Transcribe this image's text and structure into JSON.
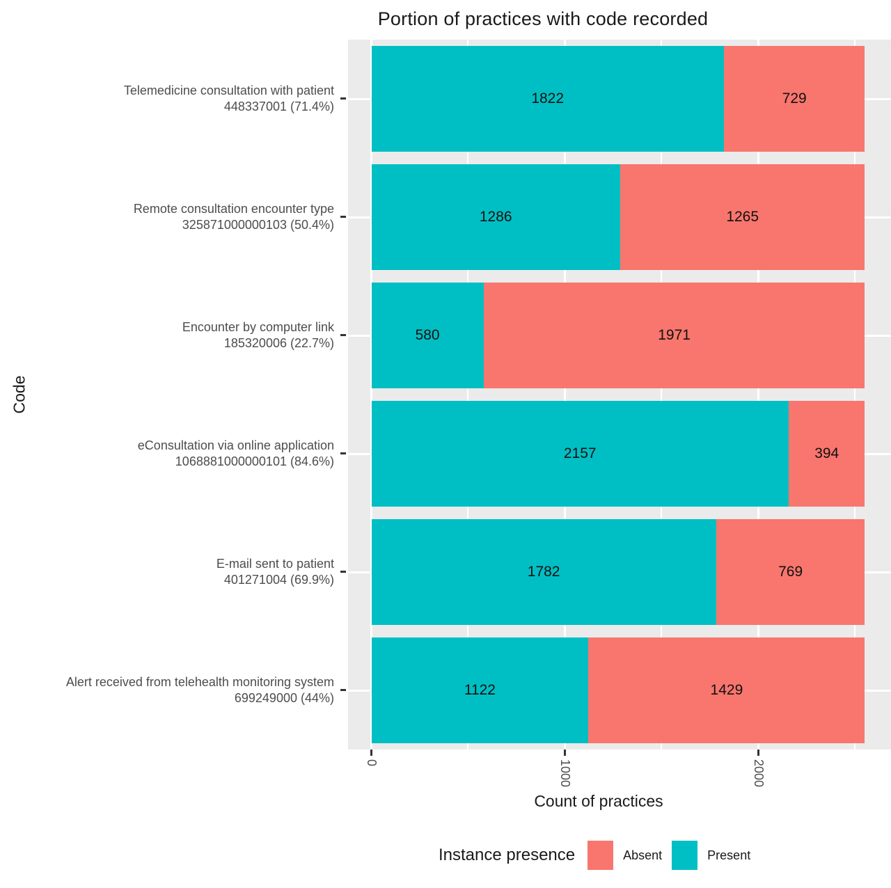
{
  "title": "Portion of practices with code recorded",
  "axes": {
    "x_title": "Count of practices",
    "y_title": "Code"
  },
  "legend": {
    "title": "Instance presence",
    "entries": [
      {
        "label": "Absent",
        "color": "#F8766D"
      },
      {
        "label": "Present",
        "color": "#00BFC4"
      }
    ]
  },
  "colors": {
    "panel_background": "#EBEBEB",
    "gridline": "#FFFFFF",
    "present": "#00BFC4",
    "absent": "#F8766D",
    "axis_text": "#4D4D4D",
    "title_text": "#1A1A1A",
    "tick_mark": "#333333"
  },
  "chart_data": {
    "type": "bar",
    "orientation": "horizontal",
    "stacked": true,
    "title": "Portion of practices with code recorded",
    "xlabel": "Count of practices",
    "ylabel": "Code",
    "xlim": [
      0,
      2551
    ],
    "x_ticks": [
      0,
      1000,
      2000
    ],
    "x_minor_gridlines": [
      500,
      1500,
      2500
    ],
    "grid": true,
    "legend_position": "bottom",
    "bar_total": 2551,
    "categories": [
      "Telemedicine consultation with patient\n448337001 (71.4%)",
      "Remote consultation encounter type\n325871000000103 (50.4%)",
      "Encounter by computer link\n185320006 (22.7%)",
      "eConsultation via online application\n1068881000000101 (84.6%)",
      "E-mail sent to patient\n401271004 (69.9%)",
      "Alert received from telehealth monitoring system\n699249000 (44%)"
    ],
    "series": [
      {
        "name": "Present",
        "color": "#00BFC4",
        "values": [
          1822,
          1286,
          580,
          2157,
          1782,
          1122
        ]
      },
      {
        "name": "Absent",
        "color": "#F8766D",
        "values": [
          729,
          1265,
          1971,
          394,
          769,
          1429
        ]
      }
    ]
  }
}
